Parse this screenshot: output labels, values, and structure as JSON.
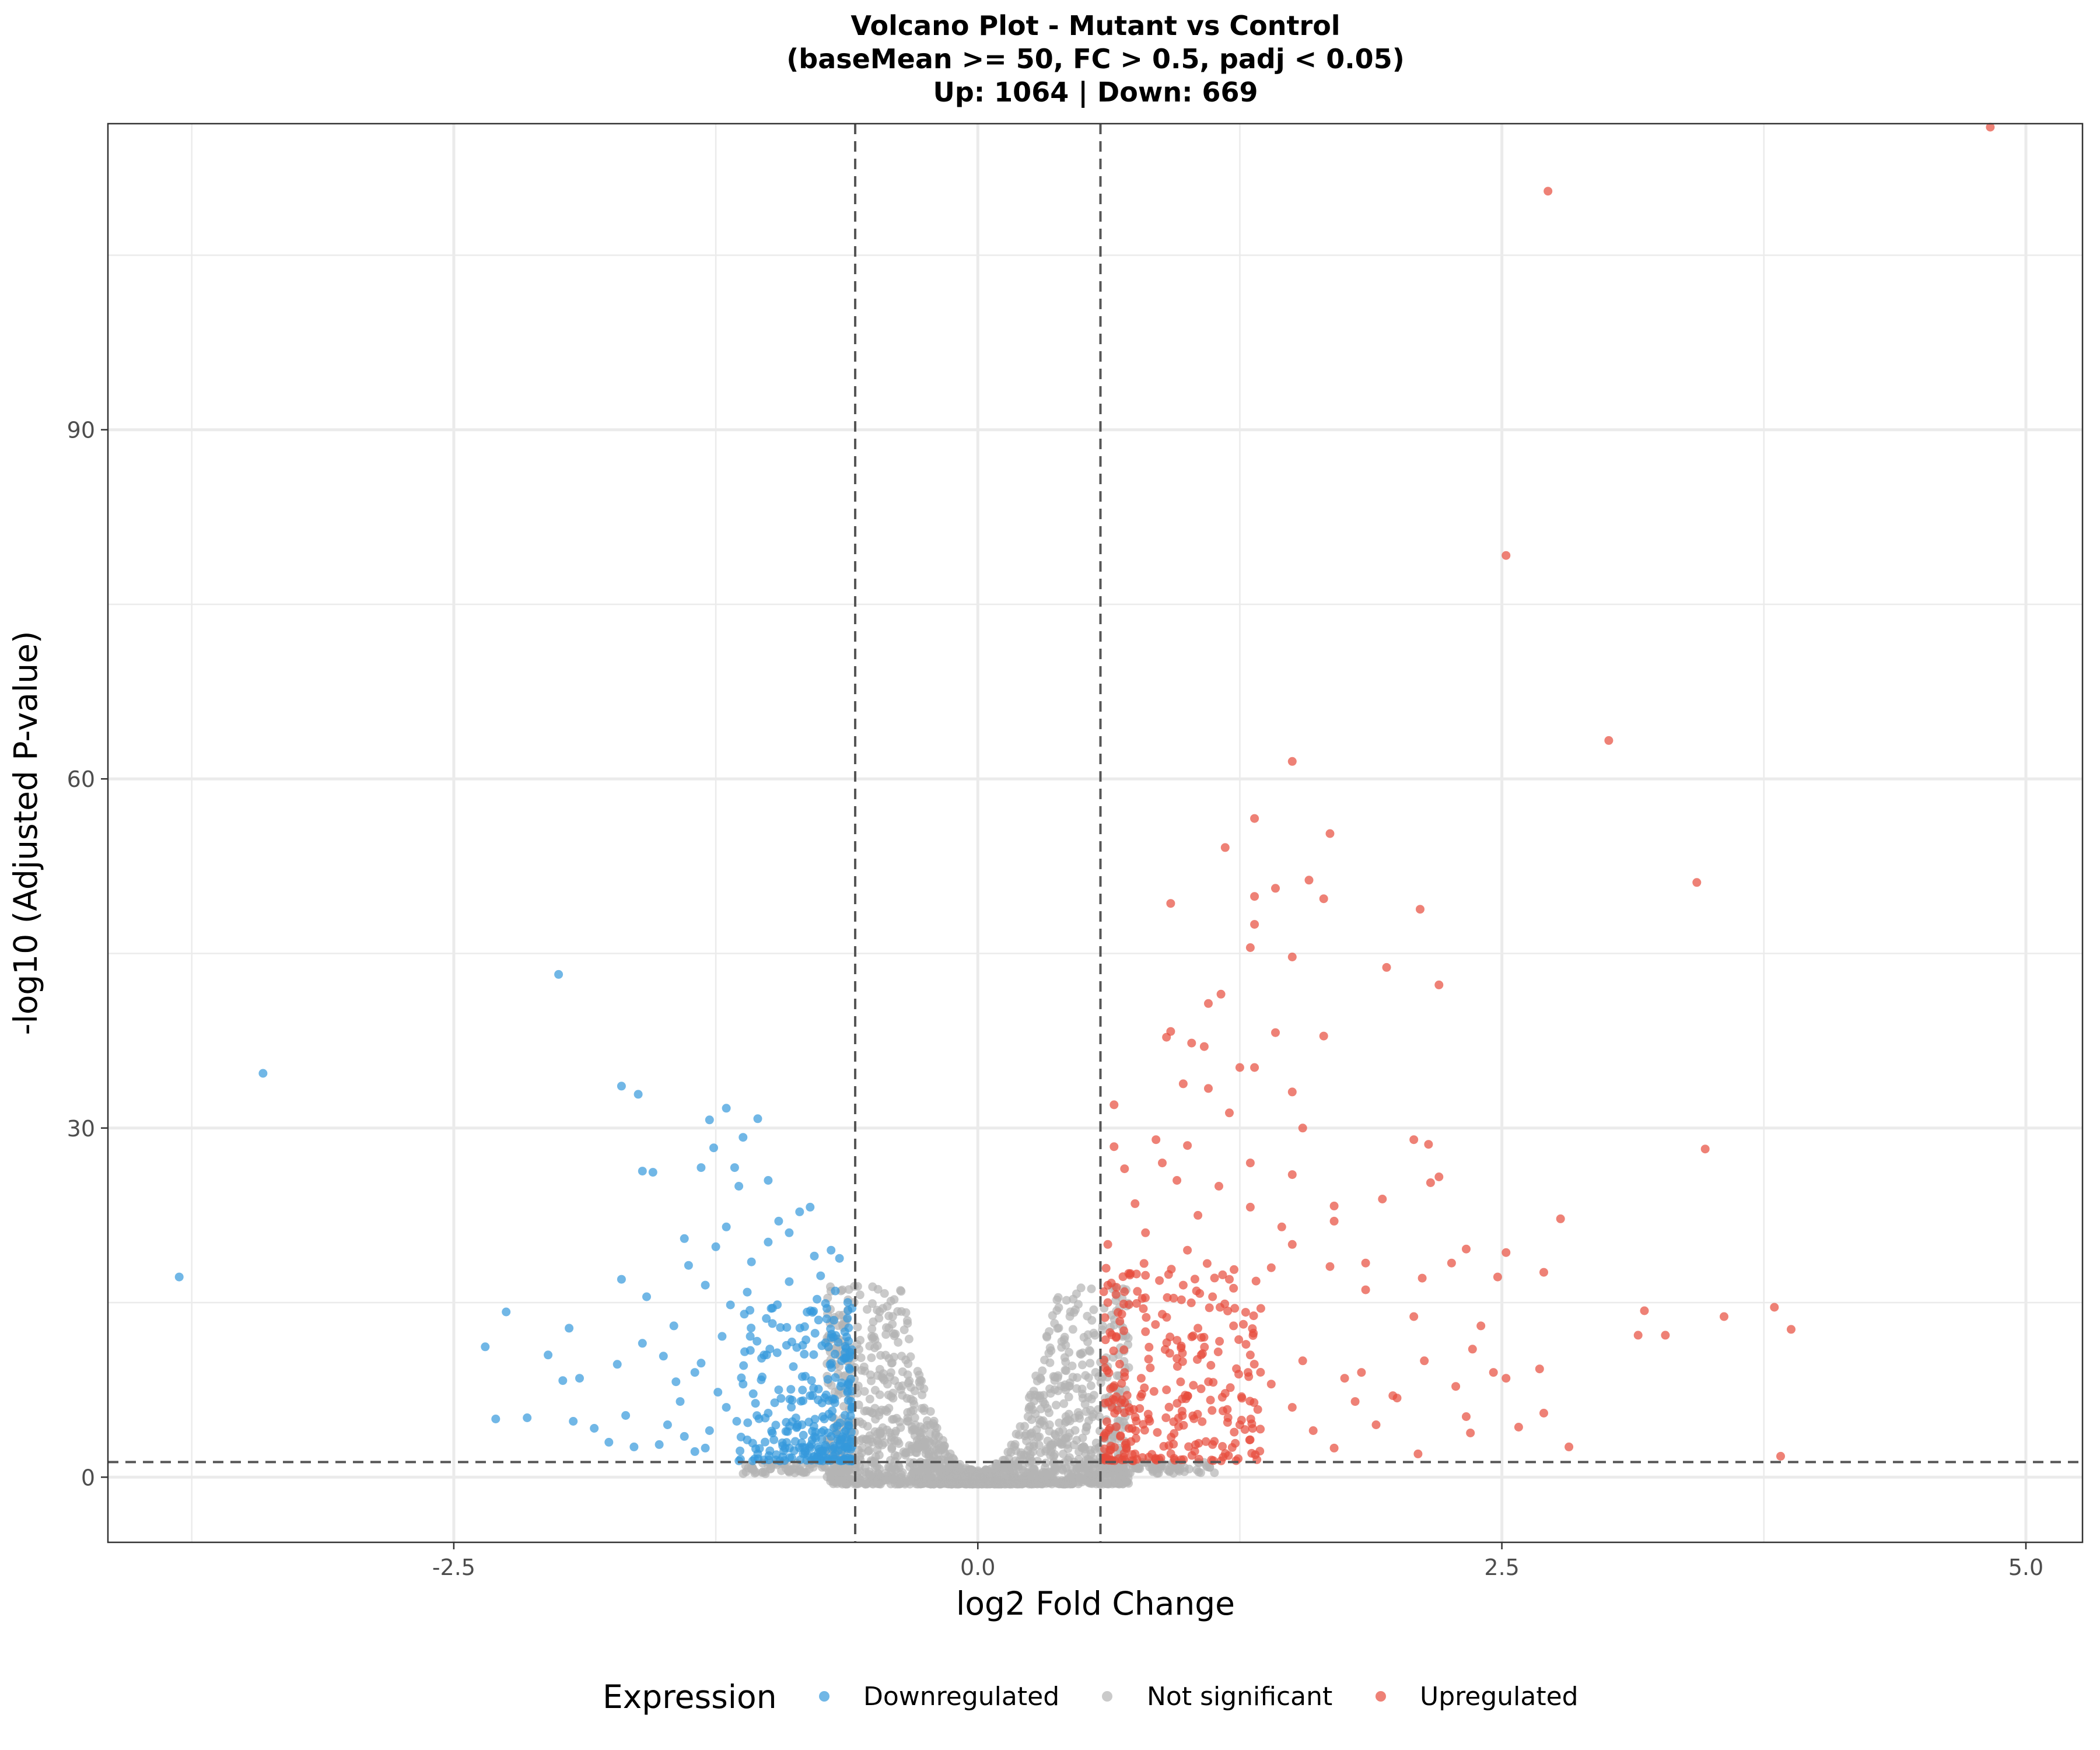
{
  "chart_data": {
    "type": "scatter",
    "title_lines": [
      "Volcano Plot - Mutant vs Control",
      "(baseMean >= 50, FC > 0.5, padj < 0.05)",
      "Up: 1064 | Down: 669"
    ],
    "xlabel": "log2 Fold Change",
    "ylabel": "-log10 (Adjusted P-value)",
    "xlim": [
      -4.15,
      5.27
    ],
    "ylim": [
      -5.6,
      116.3
    ],
    "x_ticks": [
      -2.5,
      0.0,
      2.5,
      5.0
    ],
    "x_tick_labels": [
      "-2.5",
      "0.0",
      "2.5",
      "5.0"
    ],
    "y_ticks": [
      0,
      30,
      60,
      90
    ],
    "y_tick_labels": [
      "0",
      "30",
      "60",
      "90"
    ],
    "grid": true,
    "threshold_lines": {
      "x": [
        -0.585,
        0.585
      ],
      "y": 1.3
    },
    "legend": {
      "position": "bottom",
      "title": "Expression",
      "entries": [
        "Downregulated",
        "Not significant",
        "Upregulated"
      ]
    },
    "series": [
      {
        "name": "Downregulated",
        "color": "#3498db",
        "points": [
          [
            -3.81,
            17.2
          ],
          [
            -3.41,
            34.7
          ],
          [
            -2.0,
            43.2
          ],
          [
            -2.35,
            11.2
          ],
          [
            -2.3,
            5.0
          ],
          [
            -2.25,
            14.2
          ],
          [
            -2.15,
            5.1
          ],
          [
            -2.05,
            10.5
          ],
          [
            -1.98,
            8.3
          ],
          [
            -1.95,
            12.8
          ],
          [
            -1.93,
            4.8
          ],
          [
            -1.9,
            8.5
          ],
          [
            -1.83,
            4.2
          ],
          [
            -1.76,
            3.0
          ],
          [
            -1.7,
            17.0
          ],
          [
            -1.7,
            33.6
          ],
          [
            -1.62,
            32.9
          ],
          [
            -1.6,
            26.3
          ],
          [
            -1.55,
            26.2
          ],
          [
            -1.58,
            15.5
          ],
          [
            -1.72,
            9.7
          ],
          [
            -1.68,
            5.3
          ],
          [
            -1.64,
            2.6
          ],
          [
            -1.6,
            11.5
          ],
          [
            -1.4,
            20.5
          ],
          [
            -1.32,
            26.6
          ],
          [
            -1.28,
            30.7
          ],
          [
            -1.26,
            28.3
          ],
          [
            -1.2,
            31.7
          ],
          [
            -1.16,
            26.6
          ],
          [
            -1.14,
            25.0
          ],
          [
            -1.12,
            29.2
          ],
          [
            -1.05,
            30.8
          ],
          [
            -1.0,
            25.5
          ],
          [
            -1.2,
            21.5
          ],
          [
            -1.25,
            19.8
          ],
          [
            -1.3,
            16.5
          ],
          [
            -1.38,
            18.2
          ],
          [
            -1.45,
            13.0
          ],
          [
            -1.5,
            10.4
          ],
          [
            -1.35,
            9.0
          ],
          [
            -1.42,
            6.5
          ],
          [
            -1.48,
            4.5
          ],
          [
            -1.3,
            2.5
          ],
          [
            -1.22,
            12.1
          ],
          [
            -1.18,
            14.8
          ],
          [
            -1.1,
            15.9
          ],
          [
            -1.08,
            18.5
          ],
          [
            -1.0,
            20.2
          ],
          [
            -0.95,
            22.0
          ],
          [
            -0.9,
            21.0
          ],
          [
            -0.85,
            22.8
          ],
          [
            -0.8,
            23.2
          ],
          [
            -0.78,
            19.0
          ],
          [
            -0.75,
            17.3
          ],
          [
            -0.7,
            19.5
          ],
          [
            -0.68,
            16.0
          ],
          [
            -0.66,
            18.8
          ],
          [
            -0.72,
            14.5
          ],
          [
            -0.9,
            16.8
          ],
          [
            -0.98,
            13.2
          ],
          [
            -1.02,
            10.5
          ],
          [
            -1.12,
            8.0
          ],
          [
            -1.2,
            6.0
          ],
          [
            -1.28,
            4.0
          ],
          [
            -1.35,
            2.2
          ],
          [
            -1.4,
            3.5
          ],
          [
            -1.52,
            2.8
          ],
          [
            -1.1,
            3.2
          ],
          [
            -1.0,
            5.5
          ],
          [
            -0.95,
            7.5
          ],
          [
            -0.88,
            9.5
          ],
          [
            -0.82,
            11.8
          ],
          [
            -0.76,
            13.5
          ],
          [
            -0.7,
            12.0
          ],
          [
            -0.65,
            10.0
          ],
          [
            -0.62,
            8.0
          ],
          [
            -0.6,
            6.0
          ],
          [
            -0.63,
            4.0
          ],
          [
            -0.66,
            2.8
          ],
          [
            -0.7,
            3.5
          ],
          [
            -0.74,
            5.2
          ],
          [
            -0.8,
            7.0
          ],
          [
            -0.86,
            4.5
          ],
          [
            -0.92,
            2.5
          ],
          [
            -0.98,
            3.8
          ],
          [
            -1.05,
            2.0
          ],
          [
            -1.15,
            4.8
          ],
          [
            -1.24,
            7.3
          ],
          [
            -1.32,
            9.8
          ],
          [
            -1.44,
            8.2
          ]
        ]
      },
      {
        "name": "Not significant",
        "color": "#b3b3b3",
        "points": []
      },
      {
        "name": "Upregulated",
        "color": "#e74c3c",
        "points": [
          [
            4.83,
            116.0
          ],
          [
            2.72,
            110.5
          ],
          [
            2.52,
            79.2
          ],
          [
            3.01,
            63.3
          ],
          [
            1.5,
            61.5
          ],
          [
            1.32,
            56.6
          ],
          [
            1.68,
            55.3
          ],
          [
            1.18,
            54.1
          ],
          [
            1.58,
            51.3
          ],
          [
            3.43,
            51.1
          ],
          [
            1.42,
            50.6
          ],
          [
            1.32,
            49.9
          ],
          [
            1.65,
            49.7
          ],
          [
            0.92,
            49.3
          ],
          [
            2.11,
            48.8
          ],
          [
            1.32,
            47.5
          ],
          [
            1.3,
            45.5
          ],
          [
            1.5,
            44.7
          ],
          [
            1.95,
            43.8
          ],
          [
            2.2,
            42.3
          ],
          [
            1.16,
            41.5
          ],
          [
            1.1,
            40.7
          ],
          [
            1.42,
            38.2
          ],
          [
            1.65,
            37.9
          ],
          [
            0.92,
            38.3
          ],
          [
            1.02,
            37.3
          ],
          [
            1.08,
            37.0
          ],
          [
            0.9,
            37.8
          ],
          [
            0.98,
            33.8
          ],
          [
            1.25,
            35.2
          ],
          [
            1.32,
            35.2
          ],
          [
            1.5,
            33.1
          ],
          [
            1.1,
            33.4
          ],
          [
            0.65,
            32.0
          ],
          [
            1.2,
            31.3
          ],
          [
            1.55,
            30.0
          ],
          [
            2.08,
            29.0
          ],
          [
            2.15,
            28.6
          ],
          [
            3.47,
            28.2
          ],
          [
            0.65,
            28.4
          ],
          [
            0.85,
            29.0
          ],
          [
            1.0,
            28.5
          ],
          [
            1.3,
            27.0
          ],
          [
            1.5,
            26.0
          ],
          [
            2.2,
            25.8
          ],
          [
            2.16,
            25.3
          ],
          [
            1.93,
            23.9
          ],
          [
            1.7,
            23.3
          ],
          [
            2.78,
            22.2
          ],
          [
            1.7,
            22.0
          ],
          [
            1.5,
            20.0
          ],
          [
            2.33,
            19.6
          ],
          [
            2.52,
            19.3
          ],
          [
            2.26,
            18.4
          ],
          [
            1.85,
            18.4
          ],
          [
            1.68,
            18.1
          ],
          [
            2.7,
            17.6
          ],
          [
            2.12,
            17.1
          ],
          [
            2.48,
            17.2
          ],
          [
            1.85,
            16.1
          ],
          [
            1.4,
            18.0
          ],
          [
            1.2,
            17.0
          ],
          [
            1.0,
            19.5
          ],
          [
            0.8,
            21.0
          ],
          [
            0.75,
            23.5
          ],
          [
            0.7,
            26.5
          ],
          [
            0.62,
            20.0
          ],
          [
            0.62,
            15.0
          ],
          [
            0.66,
            12.0
          ],
          [
            0.7,
            9.0
          ],
          [
            0.64,
            6.0
          ],
          [
            0.68,
            3.5
          ],
          [
            0.75,
            2.0
          ],
          [
            0.82,
            4.8
          ],
          [
            0.9,
            7.5
          ],
          [
            0.95,
            10.2
          ],
          [
            1.05,
            12.8
          ],
          [
            1.12,
            15.5
          ],
          [
            1.22,
            13.0
          ],
          [
            1.3,
            10.5
          ],
          [
            1.4,
            8.0
          ],
          [
            1.5,
            6.0
          ],
          [
            1.6,
            4.0
          ],
          [
            1.7,
            2.5
          ],
          [
            1.55,
            10.0
          ],
          [
            1.75,
            8.5
          ],
          [
            1.8,
            6.5
          ],
          [
            1.9,
            4.5
          ],
          [
            2.0,
            6.8
          ],
          [
            2.1,
            2.0
          ],
          [
            2.13,
            10.0
          ],
          [
            2.28,
            7.8
          ],
          [
            2.33,
            5.2
          ],
          [
            2.35,
            3.8
          ],
          [
            2.4,
            13.0
          ],
          [
            2.46,
            9.0
          ],
          [
            2.52,
            8.5
          ],
          [
            2.58,
            4.3
          ],
          [
            2.7,
            5.5
          ],
          [
            2.82,
            2.6
          ],
          [
            3.15,
            12.2
          ],
          [
            3.28,
            12.2
          ],
          [
            3.56,
            13.8
          ],
          [
            3.8,
            14.6
          ],
          [
            3.83,
            1.8
          ],
          [
            3.88,
            12.7
          ],
          [
            3.18,
            14.3
          ],
          [
            2.68,
            9.3
          ],
          [
            2.36,
            11.0
          ],
          [
            2.08,
            13.8
          ],
          [
            1.98,
            7.0
          ],
          [
            1.83,
            9.0
          ],
          [
            1.25,
            4.5
          ],
          [
            1.12,
            2.8
          ],
          [
            0.88,
            14.0
          ],
          [
            0.98,
            16.5
          ],
          [
            0.72,
            17.5
          ],
          [
            0.8,
            12.5
          ],
          [
            1.05,
            22.5
          ],
          [
            1.15,
            25.0
          ],
          [
            1.3,
            23.2
          ],
          [
            0.95,
            25.5
          ],
          [
            0.88,
            27.0
          ],
          [
            1.45,
            21.5
          ],
          [
            1.35,
            14.5
          ],
          [
            1.18,
            7.2
          ]
        ]
      }
    ]
  }
}
